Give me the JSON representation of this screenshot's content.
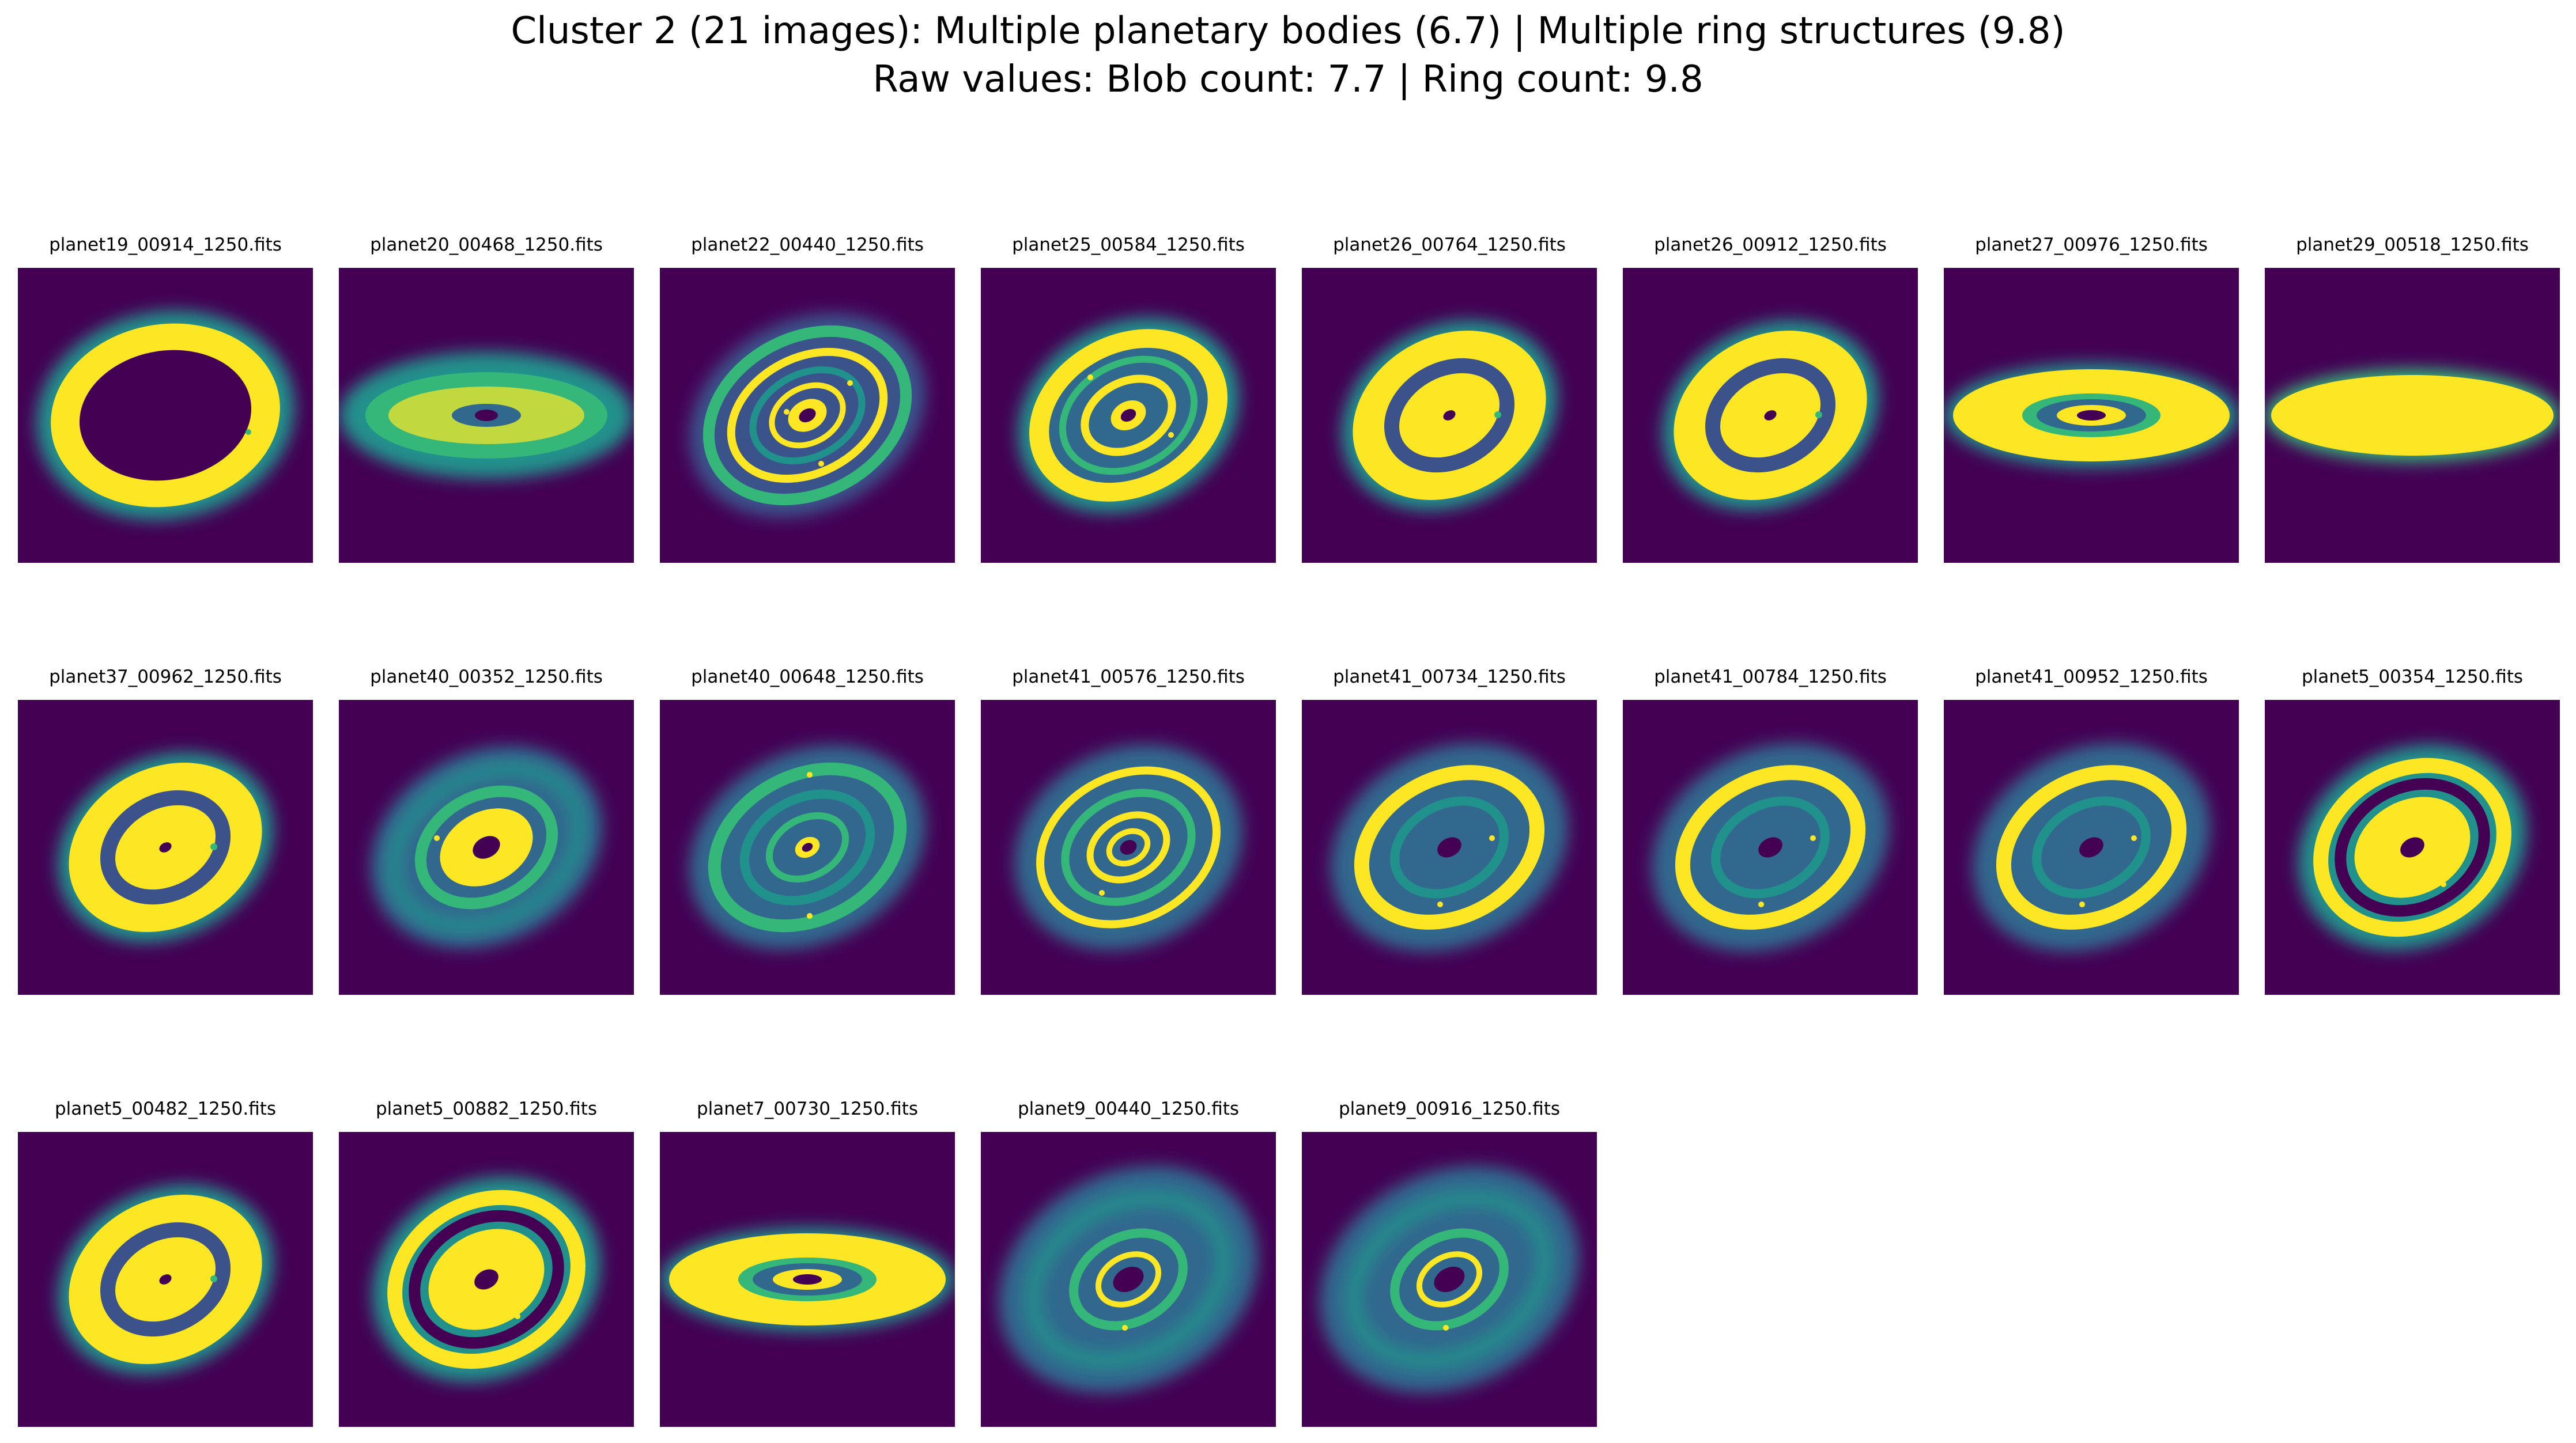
{
  "title_line1": "Cluster 2 (21 images): Multiple planetary bodies (6.7) | Multiple ring structures (9.8)",
  "title_line2": "Raw values: Blob count: 7.7 | Ring count: 9.8",
  "colors": {
    "background": "#440154",
    "yellow": "#fde725",
    "green": "#35b779",
    "teal": "#21918c",
    "blue": "#31688e",
    "indigo": "#3b528b",
    "dark": "#482878"
  },
  "images": [
    {
      "filename": "planet19_00914_1250.fits",
      "style": "wide-ring"
    },
    {
      "filename": "planet20_00468_1250.fits",
      "style": "flat-diffuse"
    },
    {
      "filename": "planet22_00440_1250.fits",
      "style": "spiral-multi"
    },
    {
      "filename": "planet25_00584_1250.fits",
      "style": "multi-ring"
    },
    {
      "filename": "planet26_00764_1250.fits",
      "style": "gap-disk"
    },
    {
      "filename": "planet26_00912_1250.fits",
      "style": "gap-disk"
    },
    {
      "filename": "planet27_00976_1250.fits",
      "style": "flat-rings"
    },
    {
      "filename": "planet29_00518_1250.fits",
      "style": "flat-solid"
    },
    {
      "filename": "planet37_00962_1250.fits",
      "style": "gap-disk"
    },
    {
      "filename": "planet40_00352_1250.fits",
      "style": "faint-spiral"
    },
    {
      "filename": "planet40_00648_1250.fits",
      "style": "faint-rings"
    },
    {
      "filename": "planet41_00576_1250.fits",
      "style": "spiral-bright"
    },
    {
      "filename": "planet41_00734_1250.fits",
      "style": "ring-faint"
    },
    {
      "filename": "planet41_00784_1250.fits",
      "style": "ring-faint"
    },
    {
      "filename": "planet41_00952_1250.fits",
      "style": "ring-faint"
    },
    {
      "filename": "planet5_00354_1250.fits",
      "style": "thick-gap"
    },
    {
      "filename": "planet5_00482_1250.fits",
      "style": "gap-disk"
    },
    {
      "filename": "planet5_00882_1250.fits",
      "style": "thick-gap"
    },
    {
      "filename": "planet7_00730_1250.fits",
      "style": "flat-rings"
    },
    {
      "filename": "planet9_00440_1250.fits",
      "style": "soft-rings"
    },
    {
      "filename": "planet9_00916_1250.fits",
      "style": "soft-rings"
    }
  ]
}
